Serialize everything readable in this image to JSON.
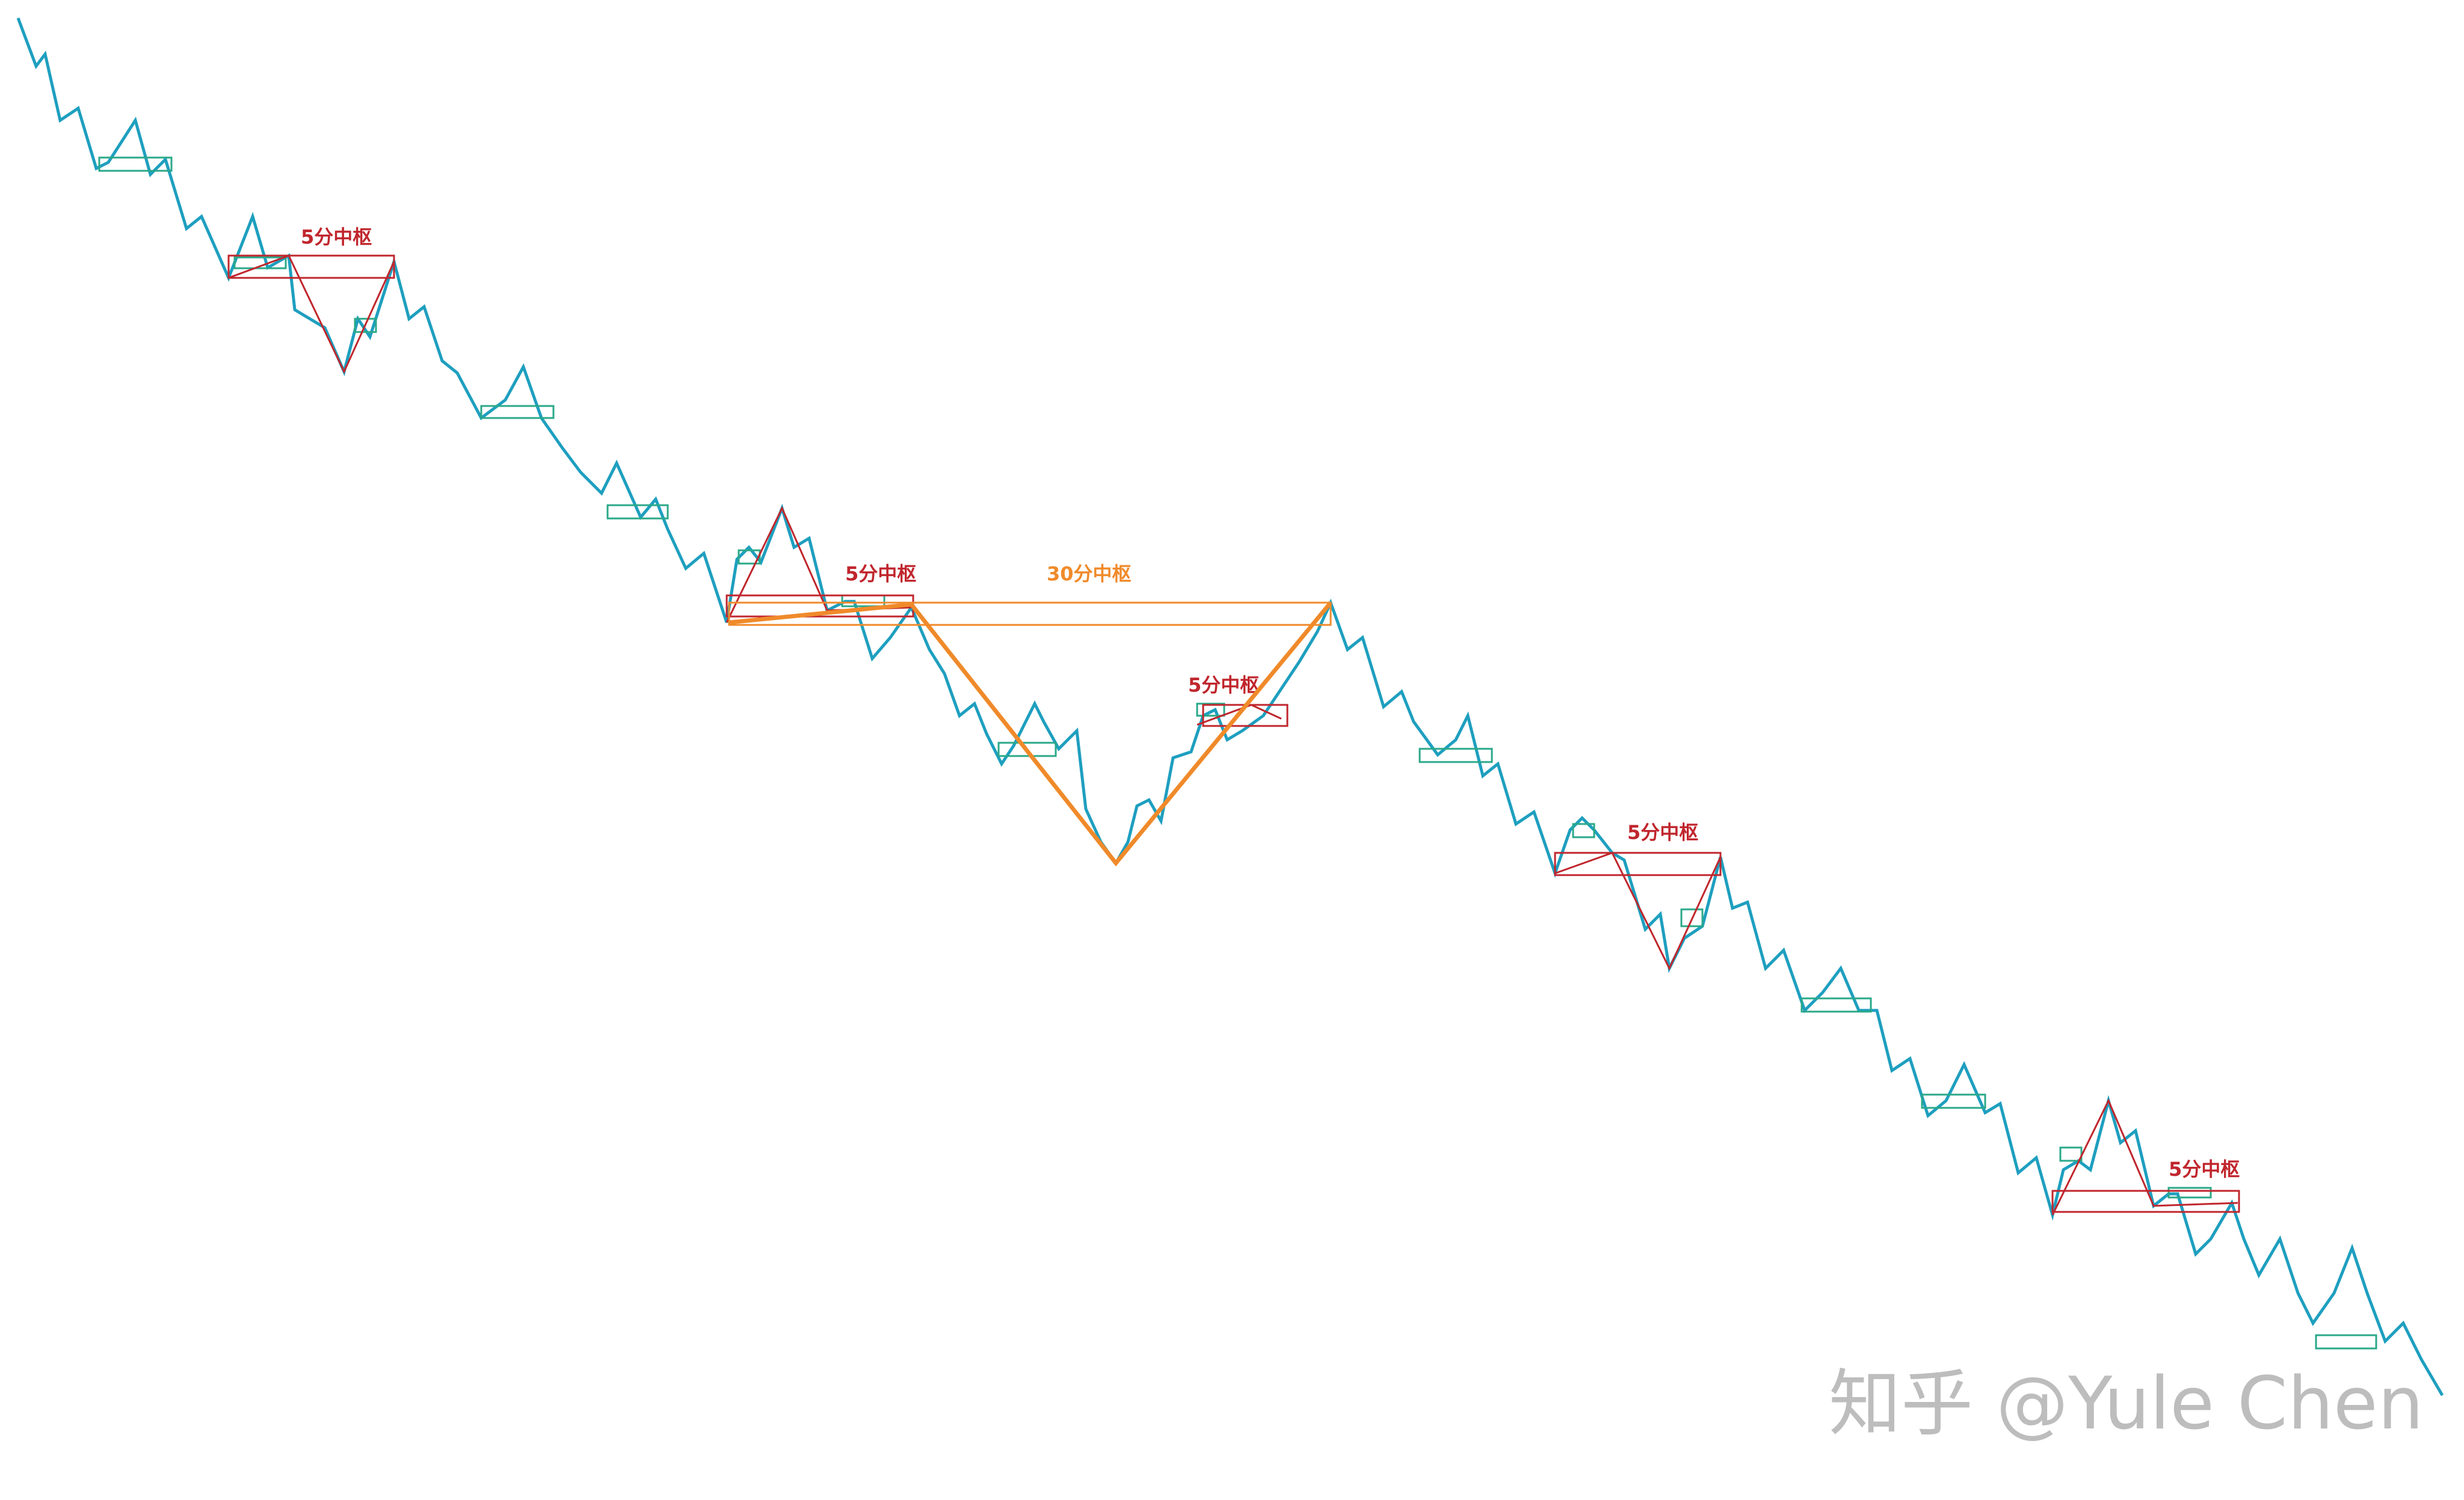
{
  "labels": {
    "pivot_5m": "5分中枢",
    "pivot_30m": "30分中枢"
  },
  "watermark": "知乎 @Yule Chen",
  "colors": {
    "price_line": "#1e9fbf",
    "pivot_1m_box": "#2aa889",
    "pivot_5m_box": "#c0262d",
    "pivot_5m_stroke": "#c0262d",
    "pivot_30m": "#f08a2a",
    "watermark": "#bdbdbd"
  }
}
